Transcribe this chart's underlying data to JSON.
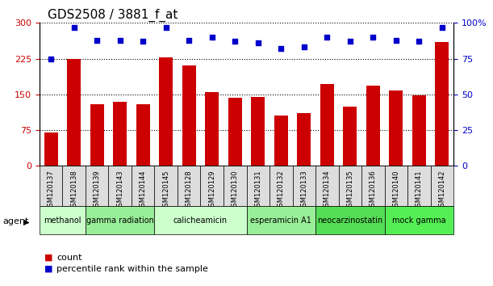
{
  "title": "GDS2508 / 3881_f_at",
  "samples": [
    "GSM120137",
    "GSM120138",
    "GSM120139",
    "GSM120143",
    "GSM120144",
    "GSM120145",
    "GSM120128",
    "GSM120129",
    "GSM120130",
    "GSM120131",
    "GSM120132",
    "GSM120133",
    "GSM120134",
    "GSM120135",
    "GSM120136",
    "GSM120140",
    "GSM120141",
    "GSM120142"
  ],
  "counts": [
    70,
    225,
    130,
    135,
    130,
    228,
    210,
    155,
    143,
    145,
    105,
    110,
    172,
    125,
    168,
    158,
    148,
    260
  ],
  "percentiles": [
    75,
    97,
    88,
    88,
    87,
    97,
    88,
    90,
    87,
    86,
    82,
    83,
    90,
    87,
    90,
    88,
    87,
    97
  ],
  "ylim_left": [
    0,
    300
  ],
  "ylim_right": [
    0,
    100
  ],
  "yticks_left": [
    0,
    75,
    150,
    225,
    300
  ],
  "yticks_right": [
    0,
    25,
    50,
    75,
    100
  ],
  "bar_color": "#cc0000",
  "dot_color": "#0000cc",
  "agents": [
    {
      "label": "methanol",
      "start": 0,
      "end": 2,
      "color": "#ccffcc"
    },
    {
      "label": "gamma radiation",
      "start": 2,
      "end": 5,
      "color": "#99ee99"
    },
    {
      "label": "calicheamicin",
      "start": 5,
      "end": 9,
      "color": "#ccffcc"
    },
    {
      "label": "esperamicin A1",
      "start": 9,
      "end": 12,
      "color": "#99ee99"
    },
    {
      "label": "neocarzinostatin",
      "start": 12,
      "end": 15,
      "color": "#55dd55"
    },
    {
      "label": "mock gamma",
      "start": 15,
      "end": 18,
      "color": "#55ee55"
    }
  ],
  "agent_label": "agent",
  "legend_count_label": "count",
  "legend_pct_label": "percentile rank within the sample",
  "background_color": "#ffffff",
  "tick_label_bg": "#dddddd"
}
